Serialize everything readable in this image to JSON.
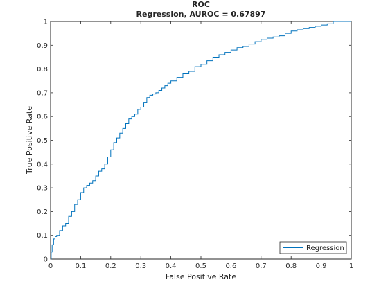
{
  "chart_data": {
    "type": "line",
    "title": "ROC",
    "subtitle": "Regression, AUROC = 0.67897",
    "xlabel": "False Positive Rate",
    "ylabel": "True Positive Rate",
    "xlim": [
      0,
      1
    ],
    "ylim": [
      0,
      1
    ],
    "x_ticks": [
      "0",
      "0.1",
      "0.2",
      "0.3",
      "0.4",
      "0.5",
      "0.6",
      "0.7",
      "0.8",
      "0.9",
      "1"
    ],
    "y_ticks": [
      "0",
      "0.1",
      "0.2",
      "0.3",
      "0.4",
      "0.5",
      "0.6",
      "0.7",
      "0.8",
      "0.9",
      "1"
    ],
    "grid": false,
    "legend_position": "bottom-right",
    "series": [
      {
        "name": "Regression",
        "color": "#0072BD",
        "x": [
          0,
          0.002,
          0.005,
          0.01,
          0.015,
          0.02,
          0.03,
          0.04,
          0.05,
          0.06,
          0.07,
          0.08,
          0.09,
          0.1,
          0.11,
          0.12,
          0.13,
          0.14,
          0.15,
          0.16,
          0.17,
          0.18,
          0.19,
          0.2,
          0.21,
          0.22,
          0.23,
          0.24,
          0.25,
          0.26,
          0.27,
          0.28,
          0.29,
          0.3,
          0.31,
          0.32,
          0.33,
          0.34,
          0.35,
          0.36,
          0.37,
          0.38,
          0.39,
          0.4,
          0.42,
          0.44,
          0.46,
          0.48,
          0.5,
          0.52,
          0.54,
          0.56,
          0.58,
          0.6,
          0.62,
          0.64,
          0.66,
          0.68,
          0.7,
          0.72,
          0.74,
          0.76,
          0.78,
          0.8,
          0.82,
          0.84,
          0.86,
          0.88,
          0.9,
          0.92,
          0.94,
          0.96,
          0.98,
          1.0
        ],
        "y": [
          0,
          0.03,
          0.06,
          0.085,
          0.095,
          0.1,
          0.12,
          0.14,
          0.15,
          0.18,
          0.2,
          0.23,
          0.25,
          0.28,
          0.3,
          0.31,
          0.32,
          0.33,
          0.35,
          0.37,
          0.38,
          0.4,
          0.43,
          0.46,
          0.49,
          0.51,
          0.53,
          0.55,
          0.57,
          0.59,
          0.6,
          0.61,
          0.63,
          0.64,
          0.66,
          0.68,
          0.69,
          0.695,
          0.7,
          0.71,
          0.72,
          0.73,
          0.74,
          0.75,
          0.765,
          0.78,
          0.79,
          0.81,
          0.82,
          0.835,
          0.85,
          0.86,
          0.87,
          0.88,
          0.89,
          0.895,
          0.905,
          0.915,
          0.925,
          0.93,
          0.935,
          0.94,
          0.95,
          0.96,
          0.965,
          0.97,
          0.975,
          0.98,
          0.985,
          0.99,
          1.0,
          1.0,
          1.0,
          1.0
        ]
      }
    ]
  }
}
